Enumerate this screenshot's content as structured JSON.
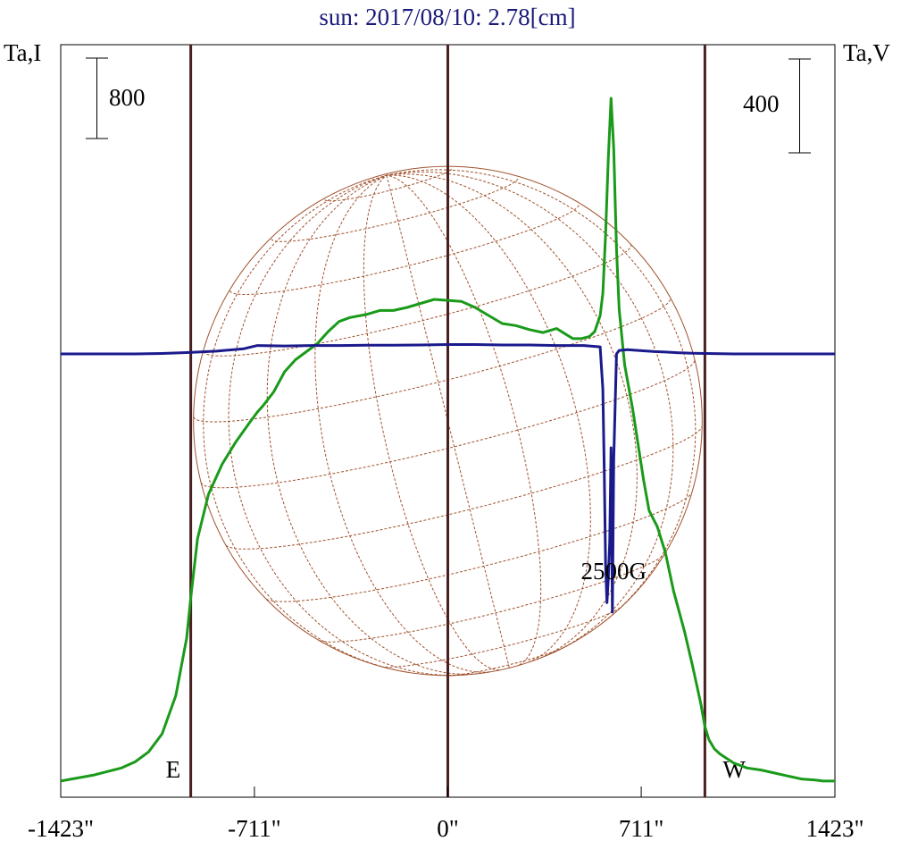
{
  "chart_data": {
    "type": "line",
    "title": "sun: 2017/08/10: 2.78[cm]",
    "title_color": "#1a1a7a",
    "left_axis_label": "Ta,I",
    "right_axis_label": "Ta,V",
    "left_scale_bar_label": "800",
    "right_scale_bar_label": "400",
    "xlim": [
      -1423,
      1423
    ],
    "x_ticks": [
      {
        "value": -1423,
        "label": "-1423\""
      },
      {
        "value": -711,
        "label": "-711\""
      },
      {
        "value": 0,
        "label": "0\""
      },
      {
        "value": 711,
        "label": "711\""
      },
      {
        "value": 1423,
        "label": "1423\""
      }
    ],
    "limb_lines": [
      {
        "x": -945,
        "label": "E"
      },
      {
        "x": 0,
        "label": ""
      },
      {
        "x": 945,
        "label": "W"
      }
    ],
    "limb_line_color": "#4a1f1f",
    "annotations": [
      {
        "text": "2500G",
        "x": 600,
        "y_intensity": 2020
      }
    ],
    "disk": {
      "center_x": 0,
      "radius": 935,
      "color": "#a0522d"
    },
    "series": [
      {
        "name": "I",
        "color": "#1a9a1a",
        "axis": "left",
        "x": [
          -1423,
          -1300,
          -1200,
          -1150,
          -1100,
          -1050,
          -1000,
          -960,
          -945,
          -920,
          -880,
          -830,
          -780,
          -730,
          -700,
          -680,
          -640,
          -600,
          -560,
          -520,
          -480,
          -440,
          -400,
          -360,
          -300,
          -250,
          -200,
          -150,
          -100,
          -50,
          0,
          50,
          100,
          150,
          200,
          250,
          300,
          350,
          400,
          430,
          460,
          490,
          520,
          540,
          560,
          570,
          580,
          590,
          600,
          610,
          620,
          630,
          650,
          680,
          700,
          720,
          740,
          770,
          800,
          830,
          870,
          900,
          930,
          945,
          960,
          980,
          1000,
          1050,
          1100,
          1150,
          1200,
          1250,
          1300,
          1350,
          1380,
          1423
        ],
        "y": [
          10,
          70,
          140,
          200,
          300,
          480,
          860,
          1430,
          1830,
          2420,
          2860,
          3160,
          3380,
          3570,
          3680,
          3740,
          3880,
          4080,
          4200,
          4280,
          4360,
          4480,
          4580,
          4620,
          4650,
          4690,
          4690,
          4720,
          4760,
          4800,
          4790,
          4780,
          4720,
          4640,
          4560,
          4540,
          4500,
          4470,
          4510,
          4460,
          4410,
          4410,
          4430,
          4480,
          4640,
          4860,
          5450,
          6200,
          6800,
          6300,
          5300,
          4700,
          4150,
          3700,
          3350,
          3000,
          2700,
          2540,
          2280,
          1900,
          1500,
          1150,
          780,
          550,
          420,
          330,
          280,
          190,
          140,
          120,
          90,
          60,
          30,
          20,
          10,
          10
        ]
      },
      {
        "name": "V",
        "color": "#1a1a8c",
        "axis": "right",
        "x": [
          -1423,
          -1350,
          -1250,
          -1150,
          -1050,
          -950,
          -850,
          -750,
          -700,
          -600,
          -500,
          -400,
          -300,
          -200,
          -100,
          0,
          100,
          200,
          300,
          400,
          500,
          560,
          570,
          575,
          580,
          585,
          590,
          595,
          600,
          605,
          610,
          620,
          630,
          660,
          700,
          760,
          800,
          850,
          900,
          950,
          1050,
          1150,
          1250,
          1350,
          1423
        ],
        "y": [
          0,
          0,
          0,
          0,
          2,
          6,
          12,
          22,
          36,
          34,
          36,
          36,
          37,
          37,
          38,
          40,
          40,
          38,
          38,
          36,
          36,
          30,
          -150,
          -500,
          -900,
          -1060,
          -960,
          -800,
          -400,
          -1100,
          -450,
          0,
          15,
          18,
          15,
          10,
          8,
          5,
          3,
          2,
          0,
          0,
          0,
          0,
          0
        ]
      }
    ]
  }
}
